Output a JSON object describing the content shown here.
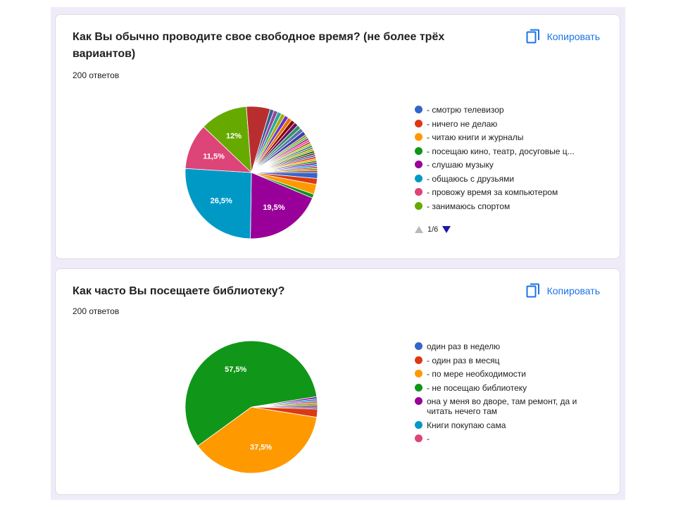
{
  "copy_label": "Копировать",
  "colors": {
    "accent": "#1a73e8",
    "background": "#f0ebf8",
    "palette": [
      "#3366cc",
      "#dc3912",
      "#ff9900",
      "#109618",
      "#990099",
      "#0099c6",
      "#dd4477",
      "#66aa00",
      "#b82e2e"
    ]
  },
  "charts": [
    {
      "title": "Как Вы обычно проводите свое свободное время? (не более трёх вариантов)",
      "responses": "200 ответов",
      "page": "1/6",
      "legend": [
        {
          "label": "- смотрю телевизор",
          "color": "#3366cc"
        },
        {
          "label": "- ничего не делаю",
          "color": "#dc3912"
        },
        {
          "label": "- читаю книги и журналы",
          "color": "#ff9900"
        },
        {
          "label": "- посещаю кино, театр, досуговые ц...",
          "color": "#109618"
        },
        {
          "label": "- слушаю музыку",
          "color": "#990099"
        },
        {
          "label": "- общаюсь с друзьями",
          "color": "#0099c6"
        },
        {
          "label": "- провожу время за компьютером",
          "color": "#dd4477"
        },
        {
          "label": "- занимаюсь спортом",
          "color": "#66aa00"
        }
      ]
    },
    {
      "title": "Как часто Вы посещаете библиотеку?",
      "responses": "200 ответов",
      "legend": [
        {
          "label": "один раз в неделю",
          "color": "#3366cc"
        },
        {
          "label": "- один раз в месяц",
          "color": "#dc3912"
        },
        {
          "label": "- по мере необходимости",
          "color": "#ff9900"
        },
        {
          "label": "- не посещаю библиотеку",
          "color": "#109618"
        },
        {
          "label": "она у меня во дворе, там ремонт, да и читать нечего там",
          "color": "#990099"
        },
        {
          "label": "Книги покупаю сама",
          "color": "#0099c6"
        },
        {
          "label": "-",
          "color": "#dd4477"
        }
      ]
    }
  ],
  "chart_data": [
    {
      "type": "pie",
      "title": "Как Вы обычно проводите свое свободное время? (не более трёх вариантов)",
      "slices": [
        {
          "label": "- смотрю телевизор",
          "value": 1.5,
          "color": "#3366cc"
        },
        {
          "label": "- ничего не делаю",
          "value": 1.5,
          "color": "#dc3912"
        },
        {
          "label": "- читаю книги и журналы",
          "value": 2.5,
          "color": "#ff9900"
        },
        {
          "label": "- посещаю кино, театр, досуговые ц...",
          "value": 1,
          "color": "#109618"
        },
        {
          "label": "- слушаю музыку",
          "value": 19.5,
          "color": "#990099",
          "display": "19,5%"
        },
        {
          "label": "- общаюсь с друзьями",
          "value": 26.5,
          "color": "#0099c6",
          "display": "26,5%"
        },
        {
          "label": "- провожу время за компьютером",
          "value": 11.5,
          "color": "#dd4477",
          "display": "11,5%"
        },
        {
          "label": "- занимаюсь спортом",
          "value": 12,
          "color": "#66aa00",
          "display": "12%"
        },
        {
          "label": "",
          "value": 6,
          "color": "#b82e2e"
        },
        {
          "label": "",
          "value": 1,
          "color": "#316395"
        },
        {
          "label": "",
          "value": 1,
          "color": "#994499"
        },
        {
          "label": "",
          "value": 1,
          "color": "#22aa99"
        },
        {
          "label": "",
          "value": 1,
          "color": "#aaaa11"
        },
        {
          "label": "",
          "value": 1,
          "color": "#6633cc"
        },
        {
          "label": "",
          "value": 1,
          "color": "#e67300"
        },
        {
          "label": "",
          "value": 1,
          "color": "#8b0707"
        },
        {
          "label": "",
          "value": 1,
          "color": "#651067"
        },
        {
          "label": "",
          "value": 1,
          "color": "#329262"
        },
        {
          "label": "",
          "value": 1,
          "color": "#5574a6"
        },
        {
          "label": "",
          "value": 1,
          "color": "#3b3eac"
        },
        {
          "label": "",
          "value": 0.5,
          "color": "#b77322"
        },
        {
          "label": "",
          "value": 0.5,
          "color": "#16d620"
        },
        {
          "label": "",
          "value": 0.5,
          "color": "#b91383"
        },
        {
          "label": "",
          "value": 0.5,
          "color": "#f4359e"
        },
        {
          "label": "",
          "value": 0.5,
          "color": "#9c5935"
        },
        {
          "label": "",
          "value": 0.5,
          "color": "#a9c413"
        },
        {
          "label": "",
          "value": 0.5,
          "color": "#2a778d"
        },
        {
          "label": "",
          "value": 0.5,
          "color": "#668d1c"
        },
        {
          "label": "",
          "value": 0.5,
          "color": "#bea413"
        },
        {
          "label": "",
          "value": 0.5,
          "color": "#0c5922"
        },
        {
          "label": "",
          "value": 0.5,
          "color": "#743411"
        },
        {
          "label": "",
          "value": 0.5,
          "color": "#3366cc"
        },
        {
          "label": "",
          "value": 0.5,
          "color": "#dc3912"
        },
        {
          "label": "",
          "value": 0.5,
          "color": "#ff9900"
        },
        {
          "label": "",
          "value": 0.5,
          "color": "#109618"
        },
        {
          "label": "",
          "value": 0.5,
          "color": "#990099"
        },
        {
          "label": "",
          "value": 0.5,
          "color": "#0099c6"
        },
        {
          "label": "",
          "value": 0.5,
          "color": "#dd4477"
        },
        {
          "label": "",
          "value": 0.5,
          "color": "#66aa00"
        },
        {
          "label": "",
          "value": 0.5,
          "color": "#b82e2e"
        }
      ],
      "legend_position": "right"
    },
    {
      "type": "pie",
      "title": "Как часто Вы посещаете библиотеку?",
      "slices": [
        {
          "label": "один раз в неделю",
          "value": 0.5,
          "color": "#3366cc"
        },
        {
          "label": "- один раз в месяц",
          "value": 2,
          "color": "#dc3912"
        },
        {
          "label": "- по мере необходимости",
          "value": 37.5,
          "color": "#ff9900",
          "display": "37,5%"
        },
        {
          "label": "- не посещаю библиотеку",
          "value": 57.5,
          "color": "#109618",
          "display": "57,5%"
        },
        {
          "label": "она у меня во дворе, там ремонт, да и читать нечего там",
          "value": 0.5,
          "color": "#990099"
        },
        {
          "label": "Книги покупаю сама",
          "value": 0.5,
          "color": "#0099c6"
        },
        {
          "label": "-",
          "value": 0.5,
          "color": "#dd4477"
        },
        {
          "label": "",
          "value": 0.5,
          "color": "#66aa00"
        },
        {
          "label": "",
          "value": 0.5,
          "color": "#b82e2e"
        }
      ],
      "legend_position": "right"
    }
  ]
}
